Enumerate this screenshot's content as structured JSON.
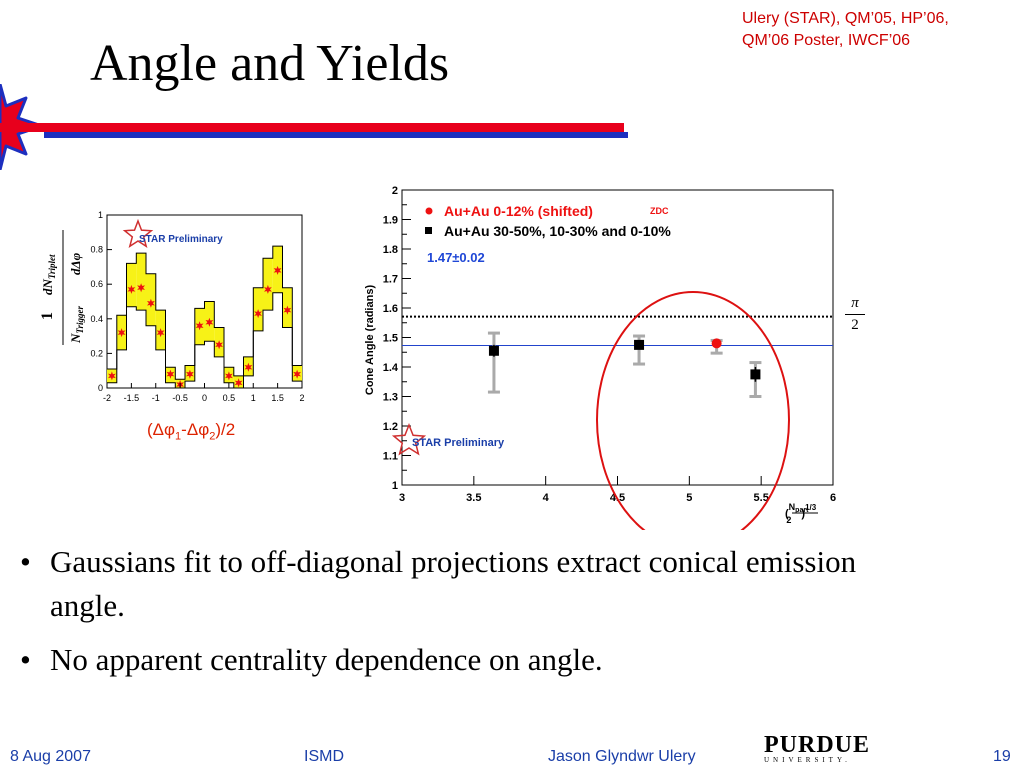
{
  "slide": {
    "title": "Angle and Yields",
    "citation": [
      "Ulery (STAR), QM’05, HP’06,",
      "QM’06 Poster, IWCF’06"
    ]
  },
  "colors": {
    "accent_red": "#e8001c",
    "accent_blue": "#1d2fbf",
    "footer_text": "#1a3ea8",
    "data_red": "#ee1111",
    "fit_yellow": "#f7f217",
    "circle_red": "#dd1111"
  },
  "chart_data": [
    {
      "type": "scatter",
      "panel": "three-particle projection",
      "annotation": "STAR Preliminary",
      "xlabel": "(Δφ1-Δφ2)/2",
      "ylabel": "1/N_Trigger dN_Triplet/dΔφ",
      "xlim": [
        -2,
        2
      ],
      "ylim": [
        0,
        1
      ],
      "xticks": [
        "-2",
        "-1.5",
        "-1",
        "-0.5",
        "0",
        "0.5",
        "1",
        "1.5",
        "2"
      ],
      "yticks": [
        "0",
        "0.2",
        "0.4",
        "0.6",
        "0.8",
        "1"
      ],
      "series": [
        {
          "style": "red stars with yellow fit band",
          "x": [
            -1.9,
            -1.7,
            -1.5,
            -1.3,
            -1.1,
            -0.9,
            -0.7,
            -0.5,
            -0.3,
            -0.1,
            0.1,
            0.3,
            0.5,
            0.7,
            0.9,
            1.1,
            1.3,
            1.5,
            1.7,
            1.9
          ],
          "y": [
            0.07,
            0.32,
            0.57,
            0.58,
            0.49,
            0.32,
            0.08,
            0.02,
            0.08,
            0.36,
            0.38,
            0.25,
            0.07,
            0.03,
            0.12,
            0.43,
            0.57,
            0.68,
            0.45,
            0.08
          ],
          "band_low": [
            0.03,
            0.22,
            0.47,
            0.45,
            0.36,
            0.22,
            0.03,
            0.0,
            0.04,
            0.25,
            0.27,
            0.18,
            0.03,
            0.0,
            0.07,
            0.33,
            0.45,
            0.55,
            0.35,
            0.04
          ],
          "band_high": [
            0.11,
            0.42,
            0.72,
            0.78,
            0.66,
            0.45,
            0.12,
            0.05,
            0.13,
            0.46,
            0.5,
            0.35,
            0.12,
            0.07,
            0.18,
            0.58,
            0.75,
            0.82,
            0.58,
            0.13
          ]
        }
      ]
    },
    {
      "type": "scatter",
      "panel": "cone angle vs centrality",
      "ylabel": "Cone Angle (radians)",
      "xlabel": "(N_part/2)^1/3",
      "xlim": [
        3,
        6
      ],
      "ylim": [
        1,
        2
      ],
      "xticks": [
        "3",
        "3.5",
        "4",
        "4.5",
        "5",
        "5.5",
        "6"
      ],
      "yticks": [
        "1",
        "1.1",
        "1.2",
        "1.3",
        "1.4",
        "1.5",
        "1.6",
        "1.7",
        "1.8",
        "1.9",
        "2"
      ],
      "legend": [
        "Au+Au 0-12% (shifted)",
        "Au+Au 30-50%, 10-30% and 0-10%"
      ],
      "legend_tag": "ZDC",
      "fit_label": "1.47±0.02",
      "annotation": "STAR Preliminary",
      "reference_label_num": "π",
      "reference_label_den": "2",
      "fit_line_y": 1.473,
      "reference_line_y": 1.5708,
      "series": [
        {
          "name": "Au+Au 30-50%, 10-30% and 0-10%",
          "marker": "black square",
          "x": [
            3.64,
            4.65,
            5.46
          ],
          "y": [
            1.455,
            1.475,
            1.375
          ],
          "err": [
            0.02,
            0.015,
            0.025
          ],
          "sys_low": [
            1.315,
            1.41,
            1.3
          ],
          "sys_high": [
            1.515,
            1.505,
            1.415
          ]
        },
        {
          "name": "Au+Au 0-12% (shifted)",
          "marker": "red circle",
          "x": [
            5.19
          ],
          "y": [
            1.48
          ],
          "err": [
            0.01
          ],
          "sys_low": [
            1.447
          ],
          "sys_high": [
            1.49
          ]
        }
      ]
    }
  ],
  "bullets": [
    "Gaussians fit to off-diagonal projections extract conical emission angle.",
    "No apparent centrality dependence on angle."
  ],
  "footer": {
    "date": "8 Aug 2007",
    "conference": "ISMD",
    "author": "Jason Glyndwr Ulery",
    "page": "19",
    "logo_name": "PURDUE",
    "logo_sub": "UNIVERSITY."
  }
}
